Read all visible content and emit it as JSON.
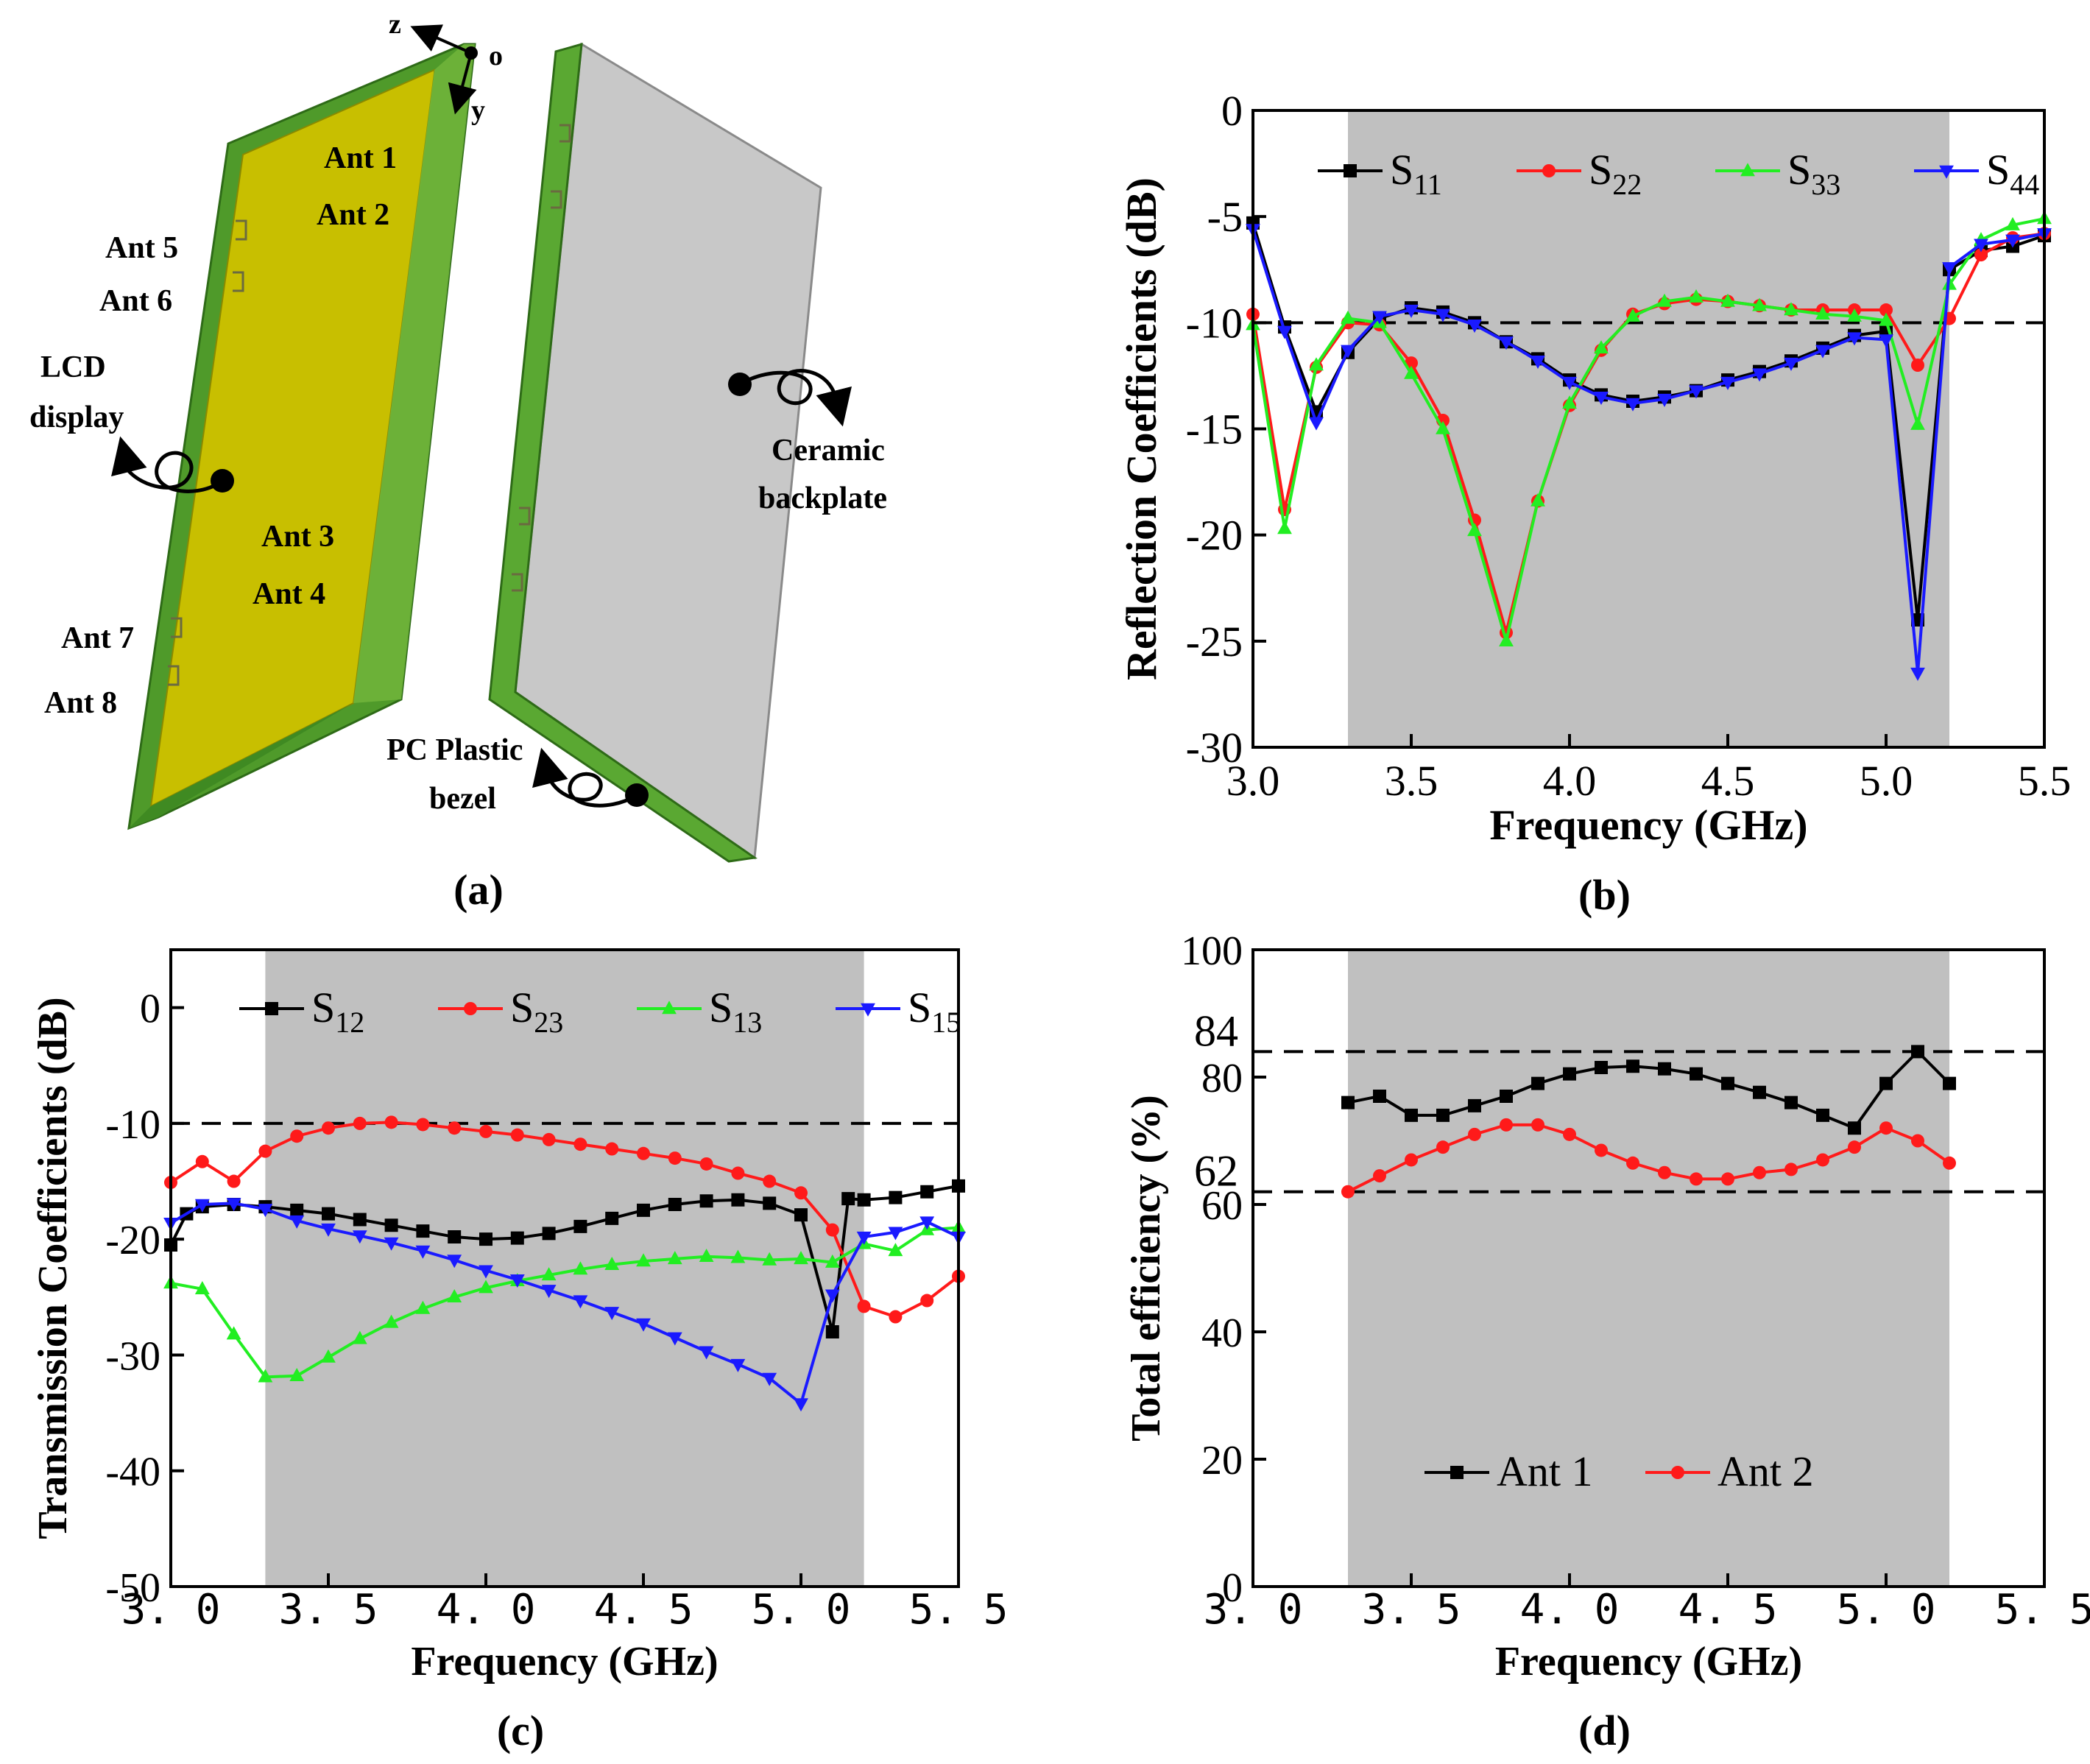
{
  "panel_a": {
    "caption": "(a)",
    "axes": {
      "z": "z",
      "o": "o",
      "y": "y"
    },
    "antenna_labels": [
      "Ant 1",
      "Ant 2",
      "Ant 5",
      "Ant 6",
      "Ant 3",
      "Ant 4",
      "Ant 7",
      "Ant 8"
    ],
    "lcd_line1": "LCD",
    "lcd_line2": "display",
    "ceramic_line1": "Ceramic",
    "ceramic_line2": "backplate",
    "bezel_line1": "PC Plastic",
    "bezel_line2": "bezel",
    "colors": {
      "lcd": "#c8c000",
      "bezel": "#5a9e2e",
      "backplate": "#c8c8c8"
    }
  },
  "chart_data": [
    {
      "id": "b",
      "type": "line",
      "caption": "(b)",
      "xlabel": "Frequency (GHz)",
      "ylabel": "Reflection Coefficients (dB)",
      "xlim": [
        3.0,
        5.5
      ],
      "ylim": [
        -30,
        0
      ],
      "xticks": [
        3.0,
        3.5,
        4.0,
        4.5,
        5.0,
        5.5
      ],
      "xtick_labels": [
        "3.0",
        "3.5",
        "4.0",
        "4.5",
        "5.0",
        "5.5"
      ],
      "yticks": [
        0,
        -5,
        -10,
        -15,
        -20,
        -25,
        -30
      ],
      "ytick_labels": [
        "0",
        "-5",
        "-10",
        "-15",
        "-20",
        "-25",
        "-30"
      ],
      "shaded_x": [
        3.3,
        5.2
      ],
      "reference_lines": [
        -10
      ],
      "legend_position": "top",
      "series": [
        {
          "name": "S11",
          "base": "S",
          "sub": "11",
          "color": "#000000",
          "marker": "square",
          "x": [
            3.0,
            3.1,
            3.2,
            3.3,
            3.4,
            3.5,
            3.6,
            3.7,
            3.8,
            3.9,
            4.0,
            4.1,
            4.2,
            4.3,
            4.4,
            4.5,
            4.6,
            4.7,
            4.8,
            4.9,
            5.0,
            5.1,
            5.2,
            5.3,
            5.4,
            5.5
          ],
          "y": [
            -5.3,
            -10.2,
            -14.2,
            -11.4,
            -9.8,
            -9.3,
            -9.5,
            -10,
            -10.9,
            -11.7,
            -12.7,
            -13.4,
            -13.7,
            -13.5,
            -13.2,
            -12.7,
            -12.3,
            -11.8,
            -11.2,
            -10.6,
            -10.4,
            -24,
            -7.5,
            -6.6,
            -6.4,
            -5.9
          ]
        },
        {
          "name": "S22",
          "base": "S",
          "sub": "22",
          "color": "#ff1a1a",
          "marker": "circle",
          "x": [
            3.0,
            3.1,
            3.2,
            3.3,
            3.4,
            3.5,
            3.6,
            3.7,
            3.8,
            3.9,
            4.0,
            4.1,
            4.2,
            4.3,
            4.4,
            4.5,
            4.6,
            4.7,
            4.8,
            4.9,
            5.0,
            5.1,
            5.2,
            5.3,
            5.4,
            5.5
          ],
          "y": [
            -9.6,
            -18.8,
            -12.1,
            -10.0,
            -10.1,
            -11.9,
            -14.6,
            -19.3,
            -24.6,
            -18.4,
            -13.9,
            -11.3,
            -9.6,
            -9.1,
            -8.9,
            -9.0,
            -9.2,
            -9.4,
            -9.4,
            -9.4,
            -9.4,
            -12.0,
            -9.8,
            -6.8,
            -6.0,
            -5.8
          ]
        },
        {
          "name": "S33",
          "base": "S",
          "sub": "33",
          "color": "#22ee22",
          "marker": "triangle-up",
          "x": [
            3.0,
            3.1,
            3.2,
            3.3,
            3.4,
            3.5,
            3.6,
            3.7,
            3.8,
            3.9,
            4.0,
            4.1,
            4.2,
            4.3,
            4.4,
            4.5,
            4.6,
            4.7,
            4.8,
            4.9,
            5.0,
            5.1,
            5.2,
            5.3,
            5.4,
            5.5
          ],
          "y": [
            -10.1,
            -19.7,
            -12.0,
            -9.8,
            -10.0,
            -12.4,
            -15.0,
            -19.8,
            -25.0,
            -18.4,
            -13.8,
            -11.2,
            -9.7,
            -9.0,
            -8.8,
            -9.0,
            -9.2,
            -9.4,
            -9.6,
            -9.7,
            -9.9,
            -14.8,
            -8.2,
            -6.1,
            -5.4,
            -5.1
          ]
        },
        {
          "name": "S44",
          "base": "S",
          "sub": "44",
          "color": "#1a1aff",
          "marker": "triangle-down",
          "x": [
            3.0,
            3.1,
            3.2,
            3.3,
            3.4,
            3.5,
            3.6,
            3.7,
            3.8,
            3.9,
            4.0,
            4.1,
            4.2,
            4.3,
            4.4,
            4.5,
            4.6,
            4.7,
            4.8,
            4.9,
            5.0,
            5.1,
            5.2,
            5.3,
            5.4,
            5.5
          ],
          "y": [
            -5.6,
            -10.4,
            -14.7,
            -11.3,
            -9.7,
            -9.4,
            -9.6,
            -10.1,
            -10.9,
            -11.8,
            -12.8,
            -13.5,
            -13.8,
            -13.6,
            -13.2,
            -12.8,
            -12.4,
            -11.9,
            -11.3,
            -10.7,
            -10.8,
            -26.5,
            -7.4,
            -6.3,
            -6.1,
            -5.8
          ]
        }
      ]
    },
    {
      "id": "c",
      "type": "line",
      "caption": "(c)",
      "xlabel": "Frequency (GHz)",
      "ylabel": "Transmission Coefficients (dB)",
      "xlim": [
        3.0,
        5.5
      ],
      "ylim": [
        -50,
        5
      ],
      "xticks": [
        3.0,
        3.5,
        4.0,
        4.5,
        5.0,
        5.5
      ],
      "xtick_labels": [
        "3. 0",
        "3. 5",
        "4. 0",
        "4. 5",
        "5. 0",
        "5. 5"
      ],
      "yticks": [
        0,
        -10,
        -20,
        -30,
        -40,
        -50
      ],
      "ytick_labels": [
        "0",
        "-10",
        "-20",
        "-30",
        "-40",
        "-50"
      ],
      "shaded_x": [
        3.3,
        5.2
      ],
      "reference_lines": [
        -10
      ],
      "legend_position": "top",
      "series": [
        {
          "name": "S12",
          "base": "S",
          "sub": "12",
          "color": "#000000",
          "marker": "square",
          "x": [
            3.0,
            3.05,
            3.1,
            3.2,
            3.3,
            3.4,
            3.5,
            3.6,
            3.7,
            3.8,
            3.9,
            4.0,
            4.1,
            4.2,
            4.3,
            4.4,
            4.5,
            4.6,
            4.7,
            4.8,
            4.9,
            5.0,
            5.1,
            5.15,
            5.2,
            5.3,
            5.4,
            5.5
          ],
          "y": [
            -20.5,
            -17.8,
            -17.2,
            -17.0,
            -17.2,
            -17.5,
            -17.8,
            -18.3,
            -18.8,
            -19.3,
            -19.8,
            -20.0,
            -19.9,
            -19.5,
            -18.9,
            -18.2,
            -17.5,
            -17.0,
            -16.7,
            -16.6,
            -16.9,
            -17.9,
            -28.0,
            -16.5,
            -16.6,
            -16.4,
            -15.9,
            -15.4
          ]
        },
        {
          "name": "S23",
          "base": "S",
          "sub": "23",
          "color": "#ff1a1a",
          "marker": "circle",
          "x": [
            3.0,
            3.1,
            3.2,
            3.3,
            3.4,
            3.5,
            3.6,
            3.7,
            3.8,
            3.9,
            4.0,
            4.1,
            4.2,
            4.3,
            4.4,
            4.5,
            4.6,
            4.7,
            4.8,
            4.9,
            5.0,
            5.1,
            5.2,
            5.3,
            5.4,
            5.5
          ],
          "y": [
            -15.1,
            -13.3,
            -15.0,
            -12.4,
            -11.1,
            -10.4,
            -10.0,
            -9.9,
            -10.1,
            -10.4,
            -10.7,
            -11.0,
            -11.4,
            -11.8,
            -12.2,
            -12.6,
            -13.0,
            -13.5,
            -14.3,
            -15.0,
            -16.0,
            -19.2,
            -25.8,
            -26.7,
            -25.3,
            -23.2
          ]
        },
        {
          "name": "S13",
          "base": "S",
          "sub": "13",
          "color": "#22ee22",
          "marker": "triangle-up",
          "x": [
            3.0,
            3.1,
            3.2,
            3.3,
            3.4,
            3.5,
            3.6,
            3.7,
            3.8,
            3.9,
            4.0,
            4.1,
            4.2,
            4.3,
            4.4,
            4.5,
            4.6,
            4.7,
            4.8,
            4.9,
            5.0,
            5.1,
            5.2,
            5.3,
            5.4,
            5.5
          ],
          "y": [
            -23.8,
            -24.3,
            -28.2,
            -31.9,
            -31.8,
            -30.2,
            -28.6,
            -27.2,
            -26.0,
            -25.0,
            -24.2,
            -23.6,
            -23.1,
            -22.6,
            -22.2,
            -21.9,
            -21.7,
            -21.5,
            -21.6,
            -21.8,
            -21.7,
            -22.0,
            -20.4,
            -21.0,
            -19.2,
            -19.0
          ]
        },
        {
          "name": "S15",
          "base": "S",
          "sub": "15",
          "color": "#1a1aff",
          "marker": "triangle-down",
          "x": [
            3.0,
            3.1,
            3.2,
            3.3,
            3.4,
            3.5,
            3.6,
            3.7,
            3.8,
            3.9,
            4.0,
            4.1,
            4.2,
            4.3,
            4.4,
            4.5,
            4.6,
            4.7,
            4.8,
            4.9,
            5.0,
            5.1,
            5.2,
            5.3,
            5.4,
            5.5
          ],
          "y": [
            -18.6,
            -17.0,
            -16.9,
            -17.4,
            -18.4,
            -19.1,
            -19.7,
            -20.3,
            -21.0,
            -21.8,
            -22.7,
            -23.5,
            -24.4,
            -25.3,
            -26.3,
            -27.3,
            -28.5,
            -29.7,
            -30.8,
            -32.0,
            -34.2,
            -24.8,
            -19.8,
            -19.4,
            -18.5,
            -19.8
          ]
        }
      ]
    },
    {
      "id": "d",
      "type": "line",
      "caption": "(d)",
      "xlabel": "Frequency (GHz)",
      "ylabel": "Total efficiency (%)",
      "xlim": [
        3.0,
        5.5
      ],
      "ylim": [
        0,
        100
      ],
      "xticks": [
        3.0,
        3.5,
        4.0,
        4.5,
        5.0,
        5.5
      ],
      "xtick_labels": [
        "3. 0",
        "3. 5",
        "4. 0",
        "4. 5",
        "5. 0",
        "5. 5"
      ],
      "yticks": [
        0,
        20,
        40,
        60,
        80,
        100
      ],
      "ytick_labels": [
        "0",
        "20",
        "40",
        "60",
        "80",
        "100"
      ],
      "shaded_x": [
        3.3,
        5.2
      ],
      "reference_lines": [
        84,
        62
      ],
      "reference_labels": [
        "84",
        "62"
      ],
      "legend_position": "bottom-center",
      "series": [
        {
          "name": "Ant 1",
          "color": "#000000",
          "marker": "square",
          "x": [
            3.3,
            3.4,
            3.5,
            3.6,
            3.7,
            3.8,
            3.9,
            4.0,
            4.1,
            4.2,
            4.3,
            4.4,
            4.5,
            4.6,
            4.7,
            4.8,
            4.9,
            5.0,
            5.1,
            5.2
          ],
          "y": [
            76,
            77,
            74,
            74,
            75.5,
            77,
            79,
            80.5,
            81.5,
            81.7,
            81.3,
            80.5,
            79,
            77.6,
            76,
            74,
            72,
            79,
            84,
            79
          ]
        },
        {
          "name": "Ant 2",
          "color": "#ff1a1a",
          "marker": "circle",
          "x": [
            3.3,
            3.4,
            3.5,
            3.6,
            3.7,
            3.8,
            3.9,
            4.0,
            4.1,
            4.2,
            4.3,
            4.4,
            4.5,
            4.6,
            4.7,
            4.8,
            4.9,
            5.0,
            5.1,
            5.2
          ],
          "y": [
            62,
            64.5,
            67,
            69,
            71,
            72.5,
            72.5,
            71,
            68.5,
            66.5,
            65,
            64,
            64,
            65,
            65.5,
            67,
            69,
            72,
            70,
            66.5
          ]
        }
      ]
    }
  ]
}
